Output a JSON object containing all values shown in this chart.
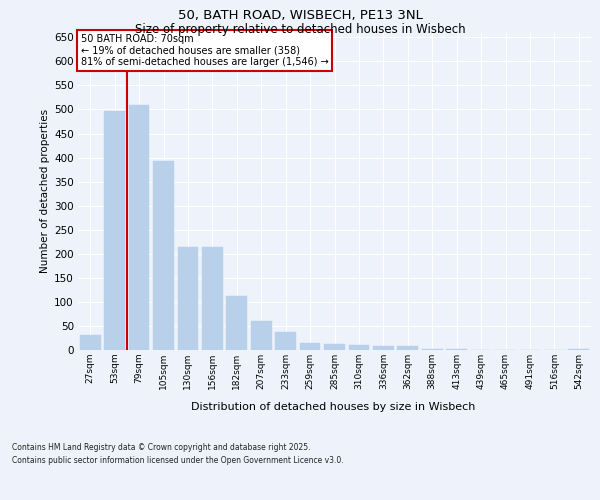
{
  "title_line1": "50, BATH ROAD, WISBECH, PE13 3NL",
  "title_line2": "Size of property relative to detached houses in Wisbech",
  "xlabel": "Distribution of detached houses by size in Wisbech",
  "ylabel": "Number of detached properties",
  "categories": [
    "27sqm",
    "53sqm",
    "79sqm",
    "105sqm",
    "130sqm",
    "156sqm",
    "182sqm",
    "207sqm",
    "233sqm",
    "259sqm",
    "285sqm",
    "310sqm",
    "336sqm",
    "362sqm",
    "388sqm",
    "413sqm",
    "439sqm",
    "465sqm",
    "491sqm",
    "516sqm",
    "542sqm"
  ],
  "values": [
    32,
    497,
    510,
    393,
    215,
    215,
    112,
    60,
    38,
    15,
    13,
    10,
    8,
    9,
    3,
    3,
    1,
    1,
    0,
    1,
    3
  ],
  "bar_color": "#b8d0ea",
  "bar_edgecolor": "#b8d0ea",
  "vline_color": "#cc0000",
  "vline_x": 1.5,
  "annotation_box_text": "50 BATH ROAD: 70sqm\n← 19% of detached houses are smaller (358)\n81% of semi-detached houses are larger (1,546) →",
  "annotation_box_color": "#cc0000",
  "background_color": "#eef2fb",
  "plot_background": "#eef2fb",
  "grid_color": "#ffffff",
  "ylim": [
    0,
    660
  ],
  "yticks": [
    0,
    50,
    100,
    150,
    200,
    250,
    300,
    350,
    400,
    450,
    500,
    550,
    600,
    650
  ],
  "footer_line1": "Contains HM Land Registry data © Crown copyright and database right 2025.",
  "footer_line2": "Contains public sector information licensed under the Open Government Licence v3.0."
}
